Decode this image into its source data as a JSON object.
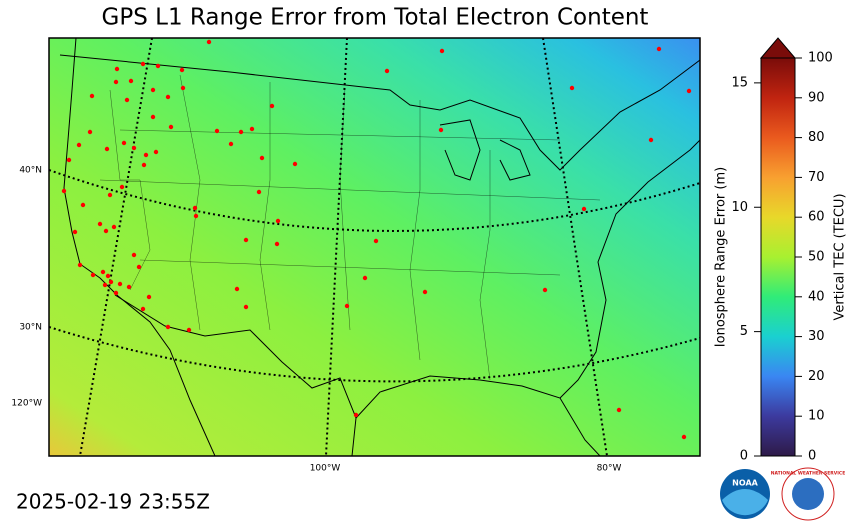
{
  "title": "GPS L1 Range Error from Total Electron Content",
  "timestamp": "2025-02-19 23:55Z",
  "map": {
    "graticule_labels": [
      "40°N",
      "30°N",
      "120°W",
      "100°W",
      "80°W"
    ]
  },
  "colorbar": {
    "left_label": "Ionosphere Range Error (m)",
    "left_lim": [
      0,
      16
    ],
    "left_ticks": [
      0,
      5,
      10,
      15
    ],
    "right_label": "Vertical TEC (TECU)",
    "right_lim": [
      0,
      100
    ],
    "right_ticks": [
      0,
      10,
      20,
      30,
      40,
      50,
      60,
      70,
      80,
      90,
      100
    ]
  },
  "logos": {
    "noaa": "NOAA",
    "nws": "NATIONAL WEATHER SERVICE"
  }
}
